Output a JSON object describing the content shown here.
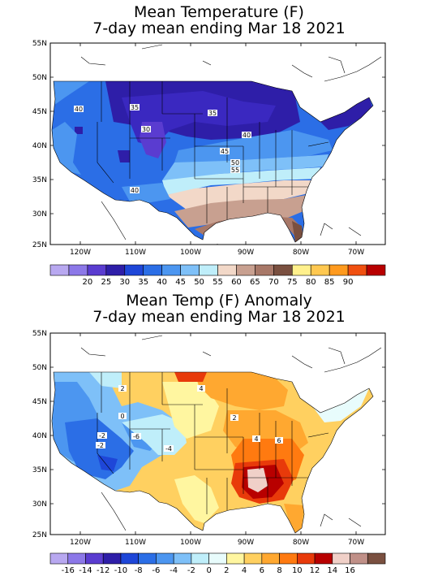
{
  "panels": [
    {
      "title1": "Mean Temperature (F)",
      "title2": "7-day mean ending Mar 18 2021",
      "lat_labels": [
        "55N",
        "50N",
        "45N",
        "40N",
        "35N",
        "30N",
        "25N"
      ],
      "lon_labels": [
        "120W",
        "110W",
        "100W",
        "90W",
        "80W",
        "70W"
      ],
      "colorbar_labels": [
        "20",
        "25",
        "30",
        "35",
        "40",
        "45",
        "50",
        "55",
        "60",
        "65",
        "70",
        "75",
        "80",
        "85",
        "90"
      ],
      "colorbar_colors": [
        "#b8a8f0",
        "#8c78e8",
        "#5a3cd0",
        "#2e1ea8",
        "#1e46d8",
        "#2b6ee6",
        "#4c96f0",
        "#7ec0f8",
        "#bfeefa",
        "#f2d8c8",
        "#c8a090",
        "#a87868",
        "#7a5040",
        "#fff08c",
        "#ffc850",
        "#ff9a1e",
        "#f05010",
        "#b80000"
      ],
      "contour_labels": [
        "40",
        "35",
        "35",
        "30",
        "40",
        "45",
        "50",
        "55",
        "40"
      ]
    },
    {
      "title1": "Mean Temp (F) Anomaly",
      "title2": "7-day mean ending Mar 18 2021",
      "lat_labels": [
        "55N",
        "50N",
        "45N",
        "40N",
        "35N",
        "30N",
        "25N"
      ],
      "lon_labels": [
        "120W",
        "110W",
        "100W",
        "90W",
        "80W",
        "70W"
      ],
      "colorbar_labels": [
        "-16",
        "-14",
        "-12",
        "-10",
        "-8",
        "-6",
        "-4",
        "-2",
        "0",
        "2",
        "4",
        "6",
        "8",
        "10",
        "12",
        "14",
        "16"
      ],
      "colorbar_colors": [
        "#b8a8f0",
        "#8c78e8",
        "#5a3cd0",
        "#2e1ea8",
        "#1e46d8",
        "#2b6ee6",
        "#4c96f0",
        "#7ec0f8",
        "#bfeefa",
        "#e8fcfc",
        "#fff6a0",
        "#ffd060",
        "#ffa830",
        "#ff7a10",
        "#e83a0a",
        "#b80000",
        "#f0d0c8",
        "#c09088",
        "#7a5040"
      ],
      "contour_labels": [
        "2",
        "4",
        "2",
        "0",
        "-2",
        "-6",
        "-4",
        "4",
        "6",
        "-2"
      ]
    }
  ]
}
